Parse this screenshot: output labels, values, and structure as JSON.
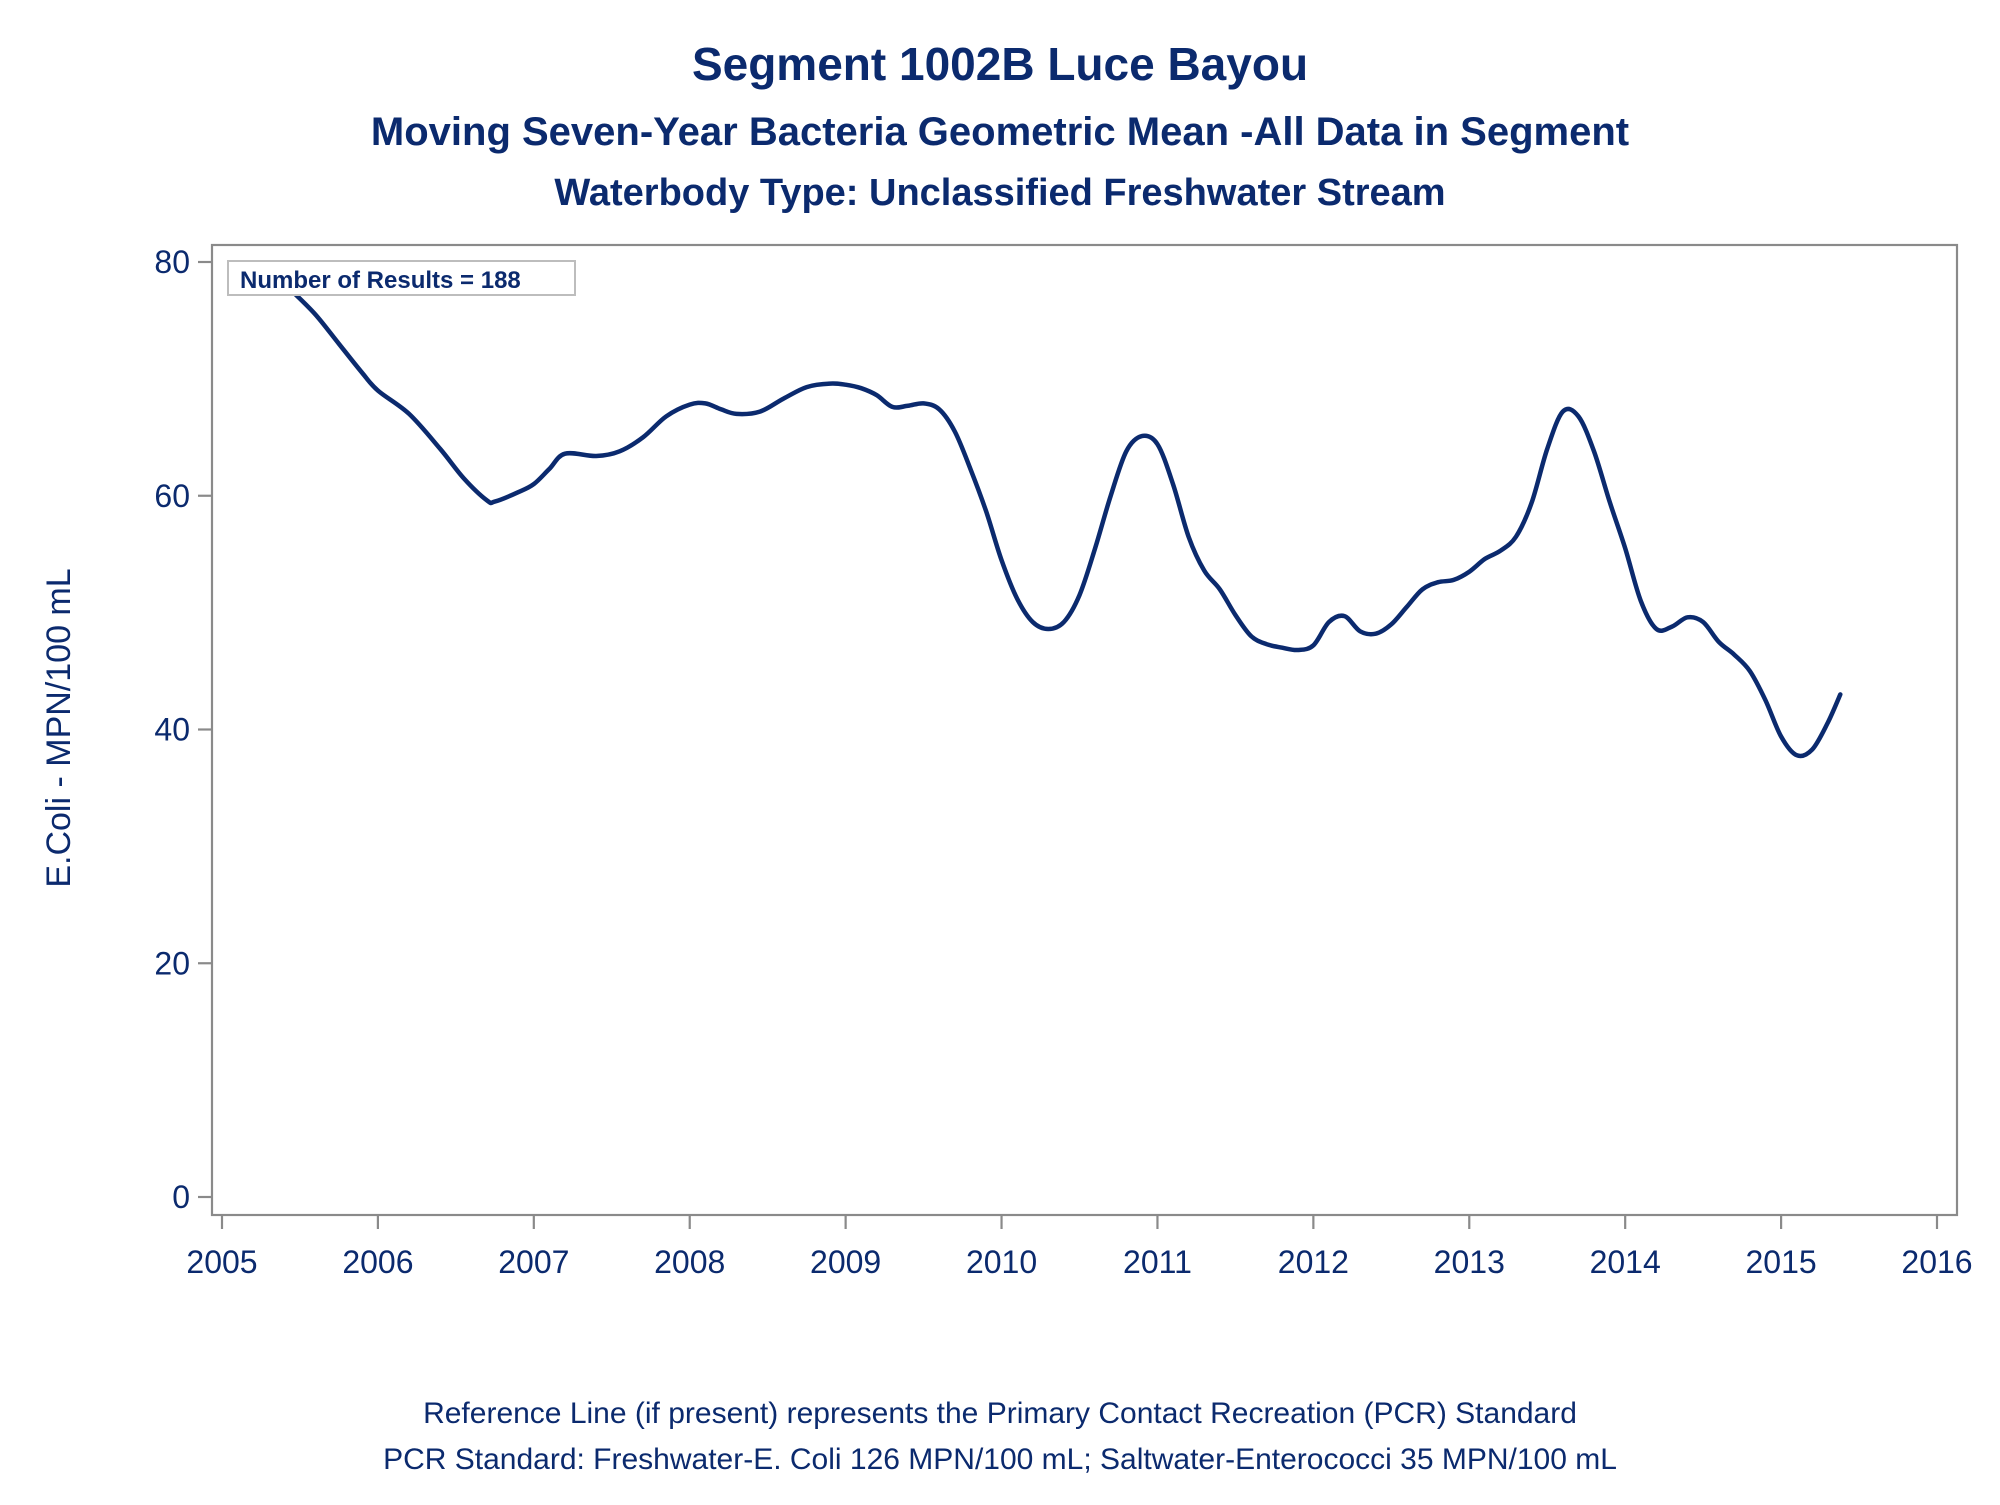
{
  "titles": {
    "line1": "Segment 1002B   Luce Bayou",
    "line2": "Moving Seven-Year Bacteria Geometric Mean -All Data in Segment",
    "line3": "Waterbody Type: Unclassified Freshwater Stream"
  },
  "annotation": "Number of Results = 188",
  "footnotes": {
    "line1": "Reference Line (if present) represents the Primary Contact Recreation (PCR) Standard",
    "line2": "PCR Standard: Freshwater-E. Coli 126 MPN/100 mL; Saltwater-Enterococci 35 MPN/100 mL"
  },
  "colors": {
    "text": "#0b2a6e",
    "line": "#0b2a6e",
    "axis": "#8a8a8a"
  },
  "chart_data": {
    "type": "line",
    "title": "Segment 1002B   Luce Bayou",
    "xlabel": "",
    "ylabel": "E.Coli - MPN/100 mL",
    "xlim": [
      2005,
      2016
    ],
    "ylim": [
      0,
      80
    ],
    "x_ticks": [
      "2005",
      "2006",
      "2007",
      "2008",
      "2009",
      "2010",
      "2011",
      "2012",
      "2013",
      "2014",
      "2015",
      "2016"
    ],
    "y_ticks": [
      "0",
      "20",
      "40",
      "60",
      "80"
    ],
    "grid": false,
    "legend": "none",
    "series": [
      {
        "x": [
          2005.45,
          2005.6,
          2005.75,
          2005.9,
          2006.0,
          2006.2,
          2006.4,
          2006.55,
          2006.7,
          2006.75,
          2006.9,
          2007.0,
          2007.1,
          2007.2,
          2007.4,
          2007.55,
          2007.7,
          2007.85,
          2008.0,
          2008.1,
          2008.2,
          2008.3,
          2008.45,
          2008.6,
          2008.75,
          2008.9,
          2009.0,
          2009.1,
          2009.2,
          2009.3,
          2009.4,
          2009.5,
          2009.6,
          2009.7,
          2009.8,
          2009.9,
          2010.0,
          2010.1,
          2010.2,
          2010.3,
          2010.4,
          2010.5,
          2010.6,
          2010.7,
          2010.8,
          2010.9,
          2011.0,
          2011.1,
          2011.2,
          2011.3,
          2011.4,
          2011.5,
          2011.6,
          2011.7,
          2011.8,
          2011.9,
          2012.0,
          2012.1,
          2012.2,
          2012.3,
          2012.4,
          2012.5,
          2012.6,
          2012.7,
          2012.8,
          2012.9,
          2013.0,
          2013.1,
          2013.2,
          2013.3,
          2013.4,
          2013.5,
          2013.6,
          2013.7,
          2013.8,
          2013.9,
          2014.0,
          2014.1,
          2014.2,
          2014.3,
          2014.4,
          2014.5,
          2014.6,
          2014.7,
          2014.8,
          2014.9,
          2015.0,
          2015.1,
          2015.2,
          2015.3,
          2015.38
        ],
        "values": [
          77.5,
          75.5,
          73.0,
          70.5,
          69.0,
          67.0,
          64.0,
          61.5,
          59.6,
          59.5,
          60.3,
          61.0,
          62.3,
          63.6,
          63.4,
          63.8,
          65.0,
          66.8,
          67.8,
          67.9,
          67.4,
          67.0,
          67.2,
          68.3,
          69.3,
          69.6,
          69.5,
          69.2,
          68.6,
          67.6,
          67.7,
          67.9,
          67.4,
          65.5,
          62.3,
          58.7,
          54.5,
          51.2,
          49.2,
          48.6,
          49.2,
          51.5,
          55.5,
          60.0,
          63.8,
          65.1,
          64.4,
          61.0,
          56.5,
          53.6,
          52.0,
          49.8,
          48.0,
          47.3,
          47.0,
          46.8,
          47.2,
          49.2,
          49.7,
          48.4,
          48.2,
          49.0,
          50.5,
          52.0,
          52.6,
          52.8,
          53.5,
          54.6,
          55.3,
          56.5,
          59.4,
          64.0,
          67.2,
          66.8,
          63.8,
          59.5,
          55.5,
          51.0,
          48.6,
          48.8,
          49.6,
          49.2,
          47.5,
          46.4,
          45.0,
          42.5,
          39.4,
          37.8,
          38.3,
          40.6,
          43.0
        ]
      }
    ]
  }
}
